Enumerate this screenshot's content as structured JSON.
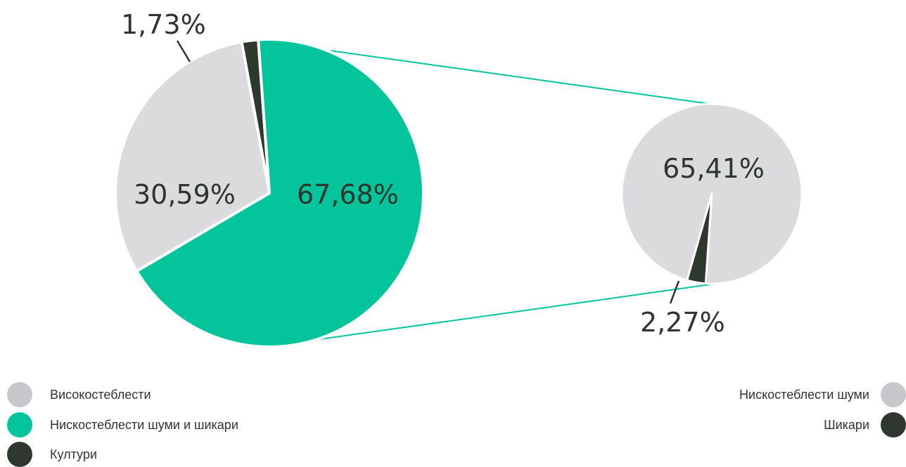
{
  "chart_data": [
    {
      "type": "pie",
      "slices": [
        {
          "label": "Високостеблести",
          "value": 30.59,
          "display": "30,59%",
          "color": "#dbdbdd"
        },
        {
          "label": "Нискостеблести шуми и шикари",
          "value": 67.68,
          "display": "67,68%",
          "color": "#04c49c"
        },
        {
          "label": "Култури",
          "value": 1.73,
          "display": "1,73%",
          "color": "#2e382f"
        }
      ]
    },
    {
      "type": "pie",
      "slices": [
        {
          "label": "Нискостеблести шуми",
          "value": 65.41,
          "display": "65,41%",
          "color": "#dbdbdd"
        },
        {
          "label": "Шикари",
          "value": 2.27,
          "display": "2,27%",
          "color": "#2e382f"
        }
      ]
    }
  ],
  "legend_left": [
    {
      "label": "Високостеблести",
      "color": "#c8c8cc"
    },
    {
      "label": "Нискостеблести шуми и шикари",
      "color": "#04c49c"
    },
    {
      "label": "Култури",
      "color": "#2e382f"
    }
  ],
  "legend_right": [
    {
      "label": "Нискостеблести шуми",
      "color": "#c8c8cc"
    },
    {
      "label": "Шикари",
      "color": "#2e382f"
    }
  ],
  "connector_color": "#04c49c"
}
